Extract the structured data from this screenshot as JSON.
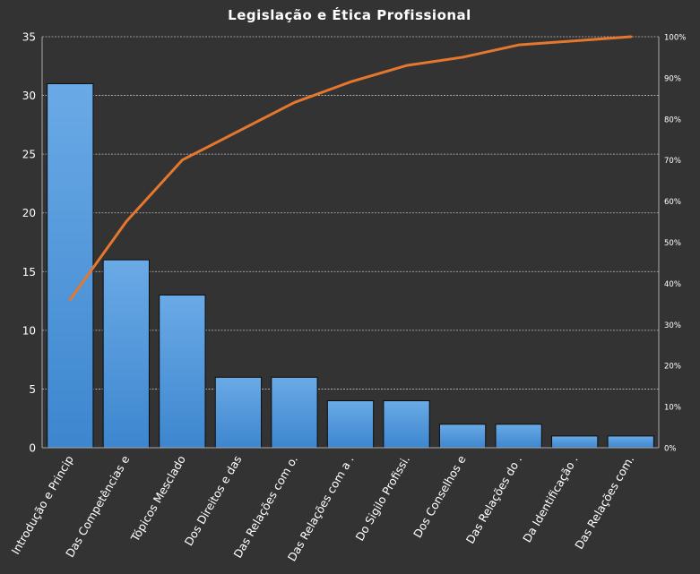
{
  "chart_data": {
    "type": "bar",
    "title": "Legislação e Ética Profissional",
    "categories": [
      "Introdução e Princip",
      "Das Competências e",
      "Tópicos Mesclado",
      "Dos Direitos e das",
      "Das Relações com o.",
      "Das Relações com a .",
      "Do Sigilo Profissi.",
      "Dos Conselhos e",
      "Das Relações do .",
      "Da Identificação .",
      "Das Relações com."
    ],
    "series": [
      {
        "values": [
          31,
          16,
          13,
          6,
          6,
          4,
          4,
          2,
          2,
          1,
          1
        ]
      }
    ],
    "cumulative_percent": [
      36,
      55,
      70,
      77,
      84,
      89,
      93,
      95,
      98,
      99,
      100
    ],
    "ylim": [
      0,
      35
    ],
    "y_ticks": [
      0,
      5,
      10,
      15,
      20,
      25,
      30,
      35
    ],
    "y2lim": [
      0,
      100
    ],
    "y2_ticks": [
      "0%",
      "10%",
      "20%",
      "30%",
      "40%",
      "50%",
      "60%",
      "70%",
      "80%",
      "90%",
      "100%"
    ],
    "grid": true,
    "bar_color": "#4f97dc",
    "line_color": "#e5772f",
    "background": "#333333"
  }
}
